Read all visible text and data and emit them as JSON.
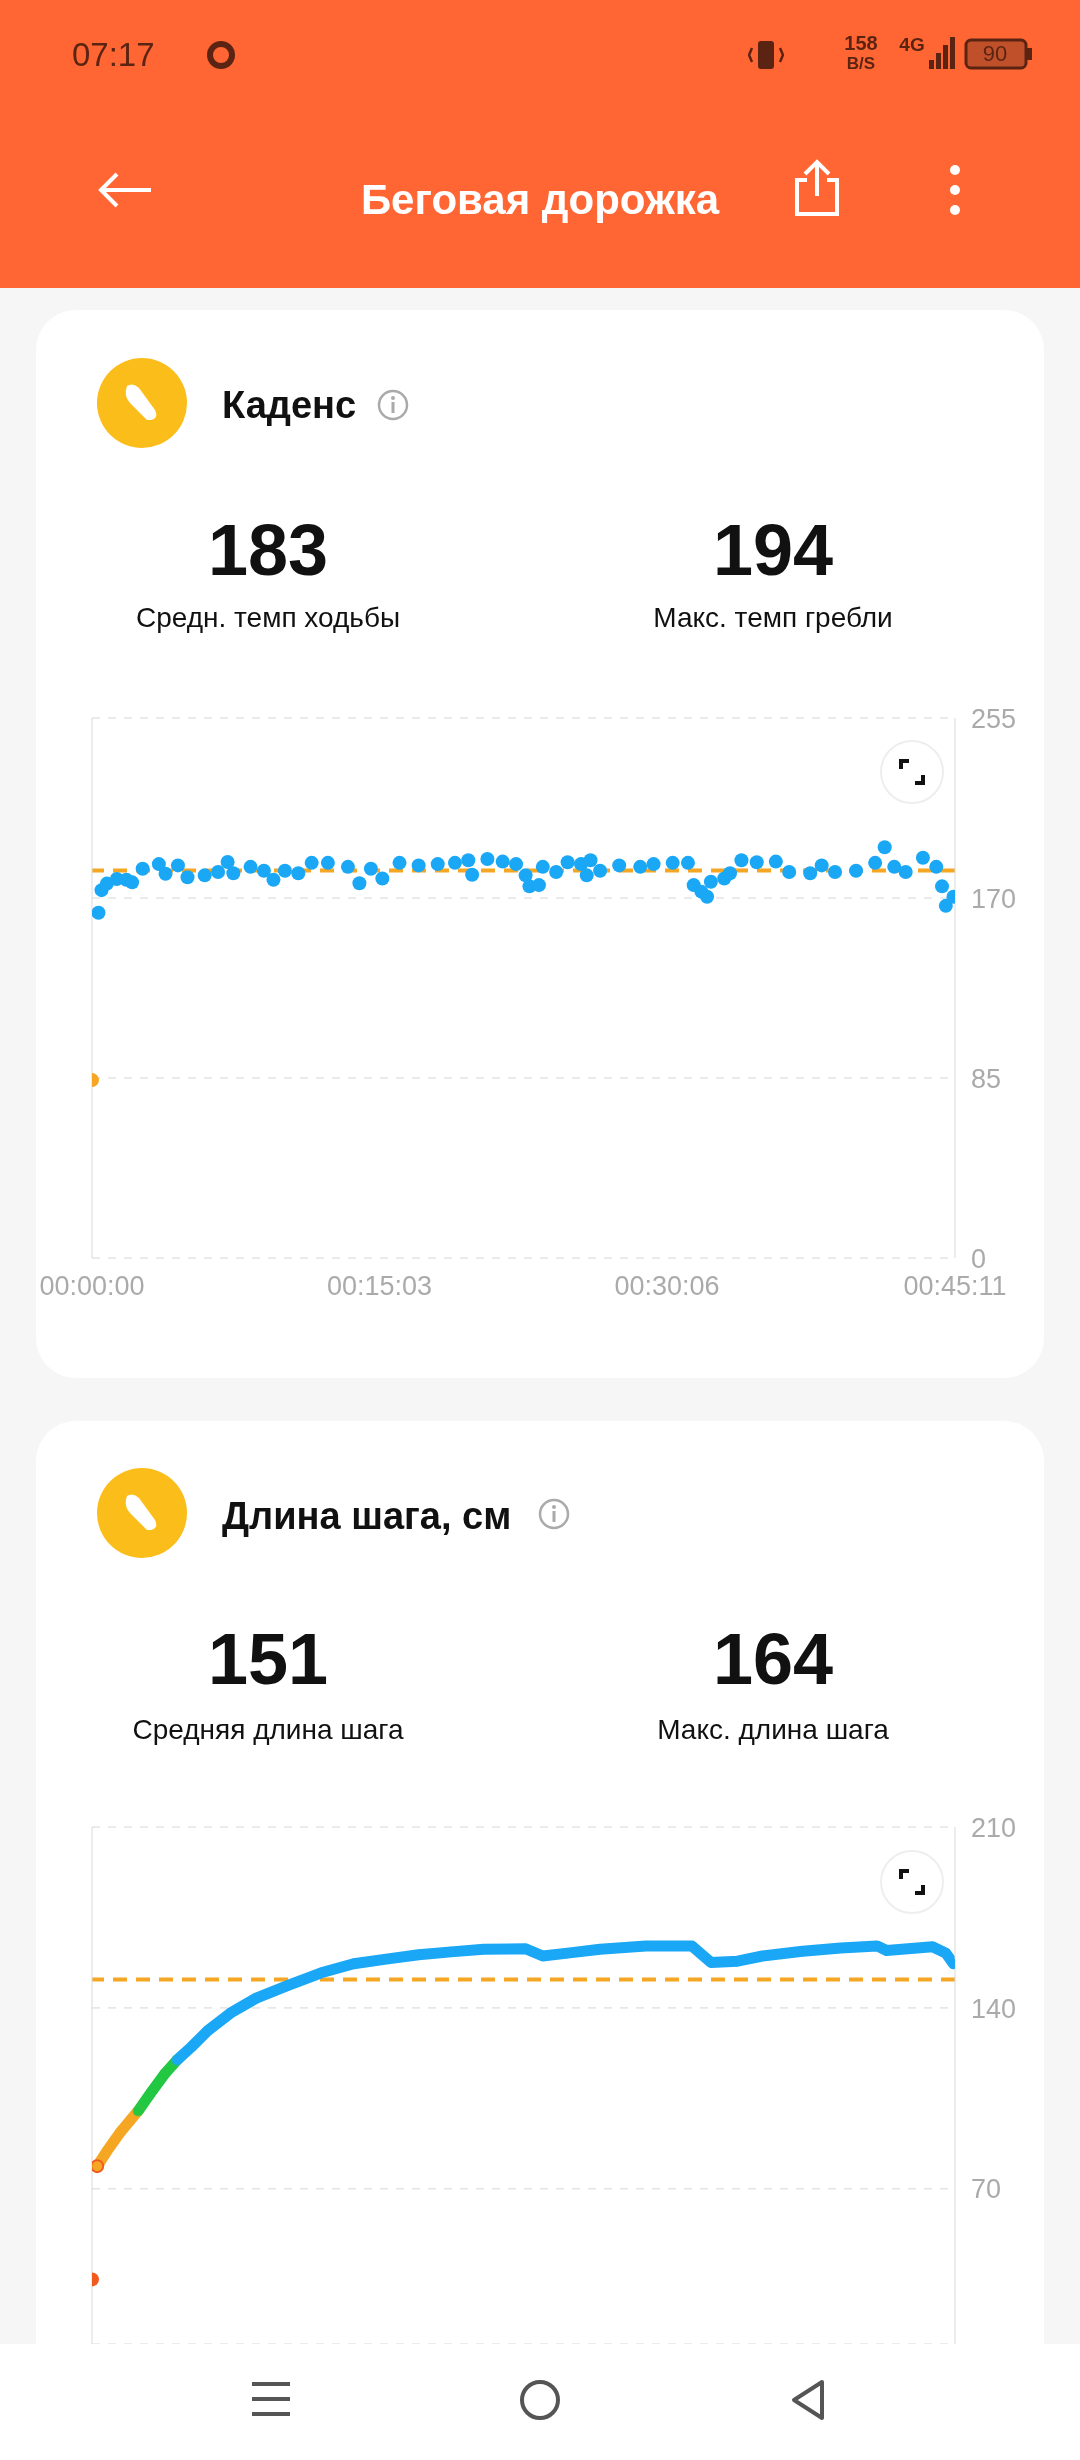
{
  "chart_data": [
    {
      "type": "scatter",
      "title": "Каденс",
      "annotations": [
        "07:17",
        "158",
        "B/S",
        "4G",
        "90",
        "Беговая дорожка",
        "183",
        "Средн. темп ходьбы",
        "194",
        "Макс. темп гребли"
      ],
      "xlim": [
        0,
        45.18
      ],
      "xticks": [
        {
          "value": 0,
          "label": "00:00:00"
        },
        {
          "value": 15.05,
          "label": "00:15:03"
        },
        {
          "value": 30.1,
          "label": "00:30:06"
        },
        {
          "value": 45.18,
          "label": "00:45:11"
        }
      ],
      "ylim": [
        0,
        255
      ],
      "yticks": [
        0,
        85,
        170,
        255
      ],
      "grid": "y",
      "marker": "circle",
      "ref_lines": [
        {
          "axis": "y",
          "value": 183,
          "color": "#f5a623",
          "line_style": "dashed"
        }
      ],
      "series": [
        {
          "color": "#f5a623",
          "x": [
            0
          ],
          "values": [
            84
          ]
        },
        {
          "color": "#1aa7f5",
          "x": [
            0.34,
            0.5,
            0.78,
            1.3,
            1.8,
            2.1,
            2.65,
            3.5,
            3.85,
            4.5,
            5.0,
            5.9,
            6.6,
            7.1,
            7.4,
            8.3,
            9.0,
            9.5,
            10.1,
            10.8,
            11.5,
            12.35,
            13.4,
            14.0,
            14.6,
            15.2,
            16.1,
            17.1,
            18.1,
            19.0,
            19.7,
            19.9,
            20.7,
            21.5,
            22.2,
            22.7,
            22.9,
            23.4,
            23.6,
            24.3,
            24.9,
            25.6,
            25.9,
            26.1,
            26.6,
            27.6,
            28.7,
            29.4,
            30.4,
            31.2,
            31.5,
            31.9,
            32.2,
            32.4,
            33.1,
            33.4,
            34.0,
            34.8,
            35.8,
            36.5,
            37.6,
            38.2,
            38.9,
            40.0,
            41.0,
            41.5,
            42.0,
            42.6,
            43.5,
            44.2,
            44.5,
            44.7,
            45.1
          ],
          "values": [
            163,
            173.7,
            176.8,
            179,
            178.6,
            177.4,
            183.8,
            186,
            181.4,
            185.4,
            179.8,
            180.7,
            182.3,
            187,
            181.7,
            184.7,
            182.9,
            178.6,
            182.9,
            181.7,
            186.6,
            186.6,
            184.7,
            177,
            183.8,
            179.2,
            186.6,
            185.4,
            186,
            186.6,
            187.8,
            181,
            188.4,
            187.2,
            186,
            180.7,
            175.5,
            176.1,
            184.7,
            182.3,
            186.9,
            186,
            180.7,
            187.8,
            182.9,
            185.4,
            184.7,
            186,
            186.6,
            186.6,
            176.1,
            173,
            170.6,
            177.7,
            179.2,
            181.7,
            187.8,
            186.9,
            187.2,
            182.3,
            181.7,
            185.4,
            182.3,
            182.9,
            186.6,
            194,
            184.7,
            182.3,
            189,
            184.7,
            175.5,
            166.3,
            170.6
          ]
        }
      ]
    },
    {
      "type": "line",
      "title": "Длина шага, см",
      "annotations": [
        "151",
        "Средняя длина шага",
        "164",
        "Макс. длина шага"
      ],
      "xlim": [
        0,
        45.18
      ],
      "ylim": [
        10,
        210
      ],
      "yticks": [
        70,
        140,
        210
      ],
      "grid": "y",
      "tick_labels": "y",
      "marker": "circle",
      "line_style": "solid",
      "ref_lines": [
        {
          "axis": "y",
          "value": 151,
          "color": "#f5a623",
          "line_style": "dashed"
        }
      ],
      "series": [
        {
          "type": "scatter",
          "color": "#f05a1e",
          "x": [
            0,
            0.27
          ],
          "values": [
            35,
            78.8
          ]
        },
        {
          "color": "#f5a623",
          "x": [
            0.27,
            0.78,
            1.46,
            2.42
          ],
          "values": [
            78.8,
            84.6,
            91.7,
            100.2
          ]
        },
        {
          "color": "#22c742",
          "x": [
            2.42,
            3.16,
            3.84,
            4.46
          ],
          "values": [
            100.2,
            108,
            114.8,
            119.9
          ]
        },
        {
          "color": "#1aa7f5",
          "x": [
            4.46,
            5.2,
            6.06,
            7.25,
            8.6,
            10.3,
            12.0,
            13.7,
            15.4,
            17.1,
            18.8,
            20.5,
            22.7,
            23.6,
            24.9,
            26.6,
            29.0,
            31.4,
            32.4,
            33.8,
            35.1,
            37.2,
            39.2,
            41.1,
            41.6,
            44.0,
            44.7,
            45.1
          ],
          "values": [
            119.9,
            124.9,
            131.2,
            138,
            143.8,
            148.8,
            153.6,
            157.1,
            158.9,
            160.6,
            161.7,
            162.7,
            162.9,
            160.1,
            161.2,
            162.7,
            164,
            164,
            157.6,
            158.1,
            160.1,
            161.9,
            163.2,
            164,
            162.2,
            163.7,
            161.2,
            157.1
          ]
        }
      ]
    }
  ]
}
